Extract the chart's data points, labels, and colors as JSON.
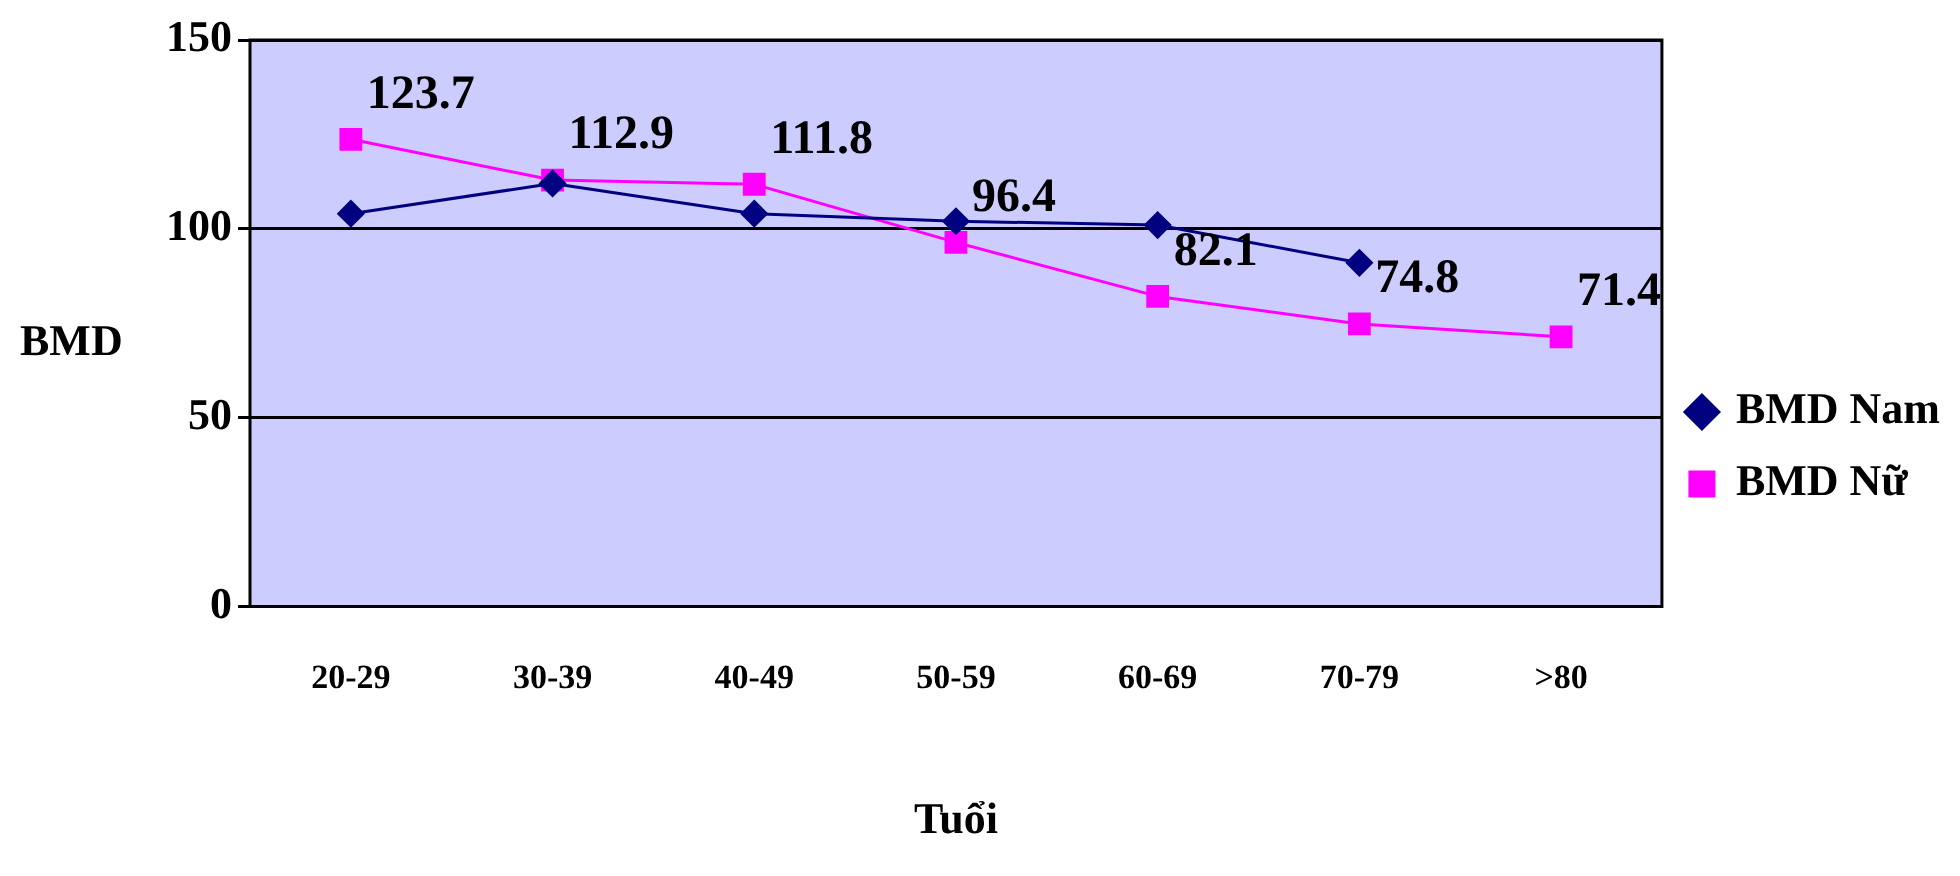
{
  "chart_data": {
    "type": "line",
    "xlabel": "Tuổi",
    "ylabel": "BMD",
    "categories": [
      "20-29",
      "30-39",
      "40-49",
      "50-59",
      "60-69",
      "70-79",
      ">80"
    ],
    "series": [
      {
        "name": "BMD Nam",
        "color": "#000080",
        "values": [
          104,
          112,
          104,
          102,
          101,
          91,
          null
        ],
        "marker": "diamond"
      },
      {
        "name": "BMD Nữ",
        "color": "#ff00ff",
        "values": [
          123.7,
          112.9,
          111.8,
          96.4,
          82.1,
          74.8,
          71.4
        ],
        "marker": "square",
        "data_labels": true
      }
    ],
    "ylim": [
      0,
      150
    ],
    "yticks": [
      0,
      50,
      100,
      150
    ],
    "grid": "y",
    "legend": "right"
  }
}
